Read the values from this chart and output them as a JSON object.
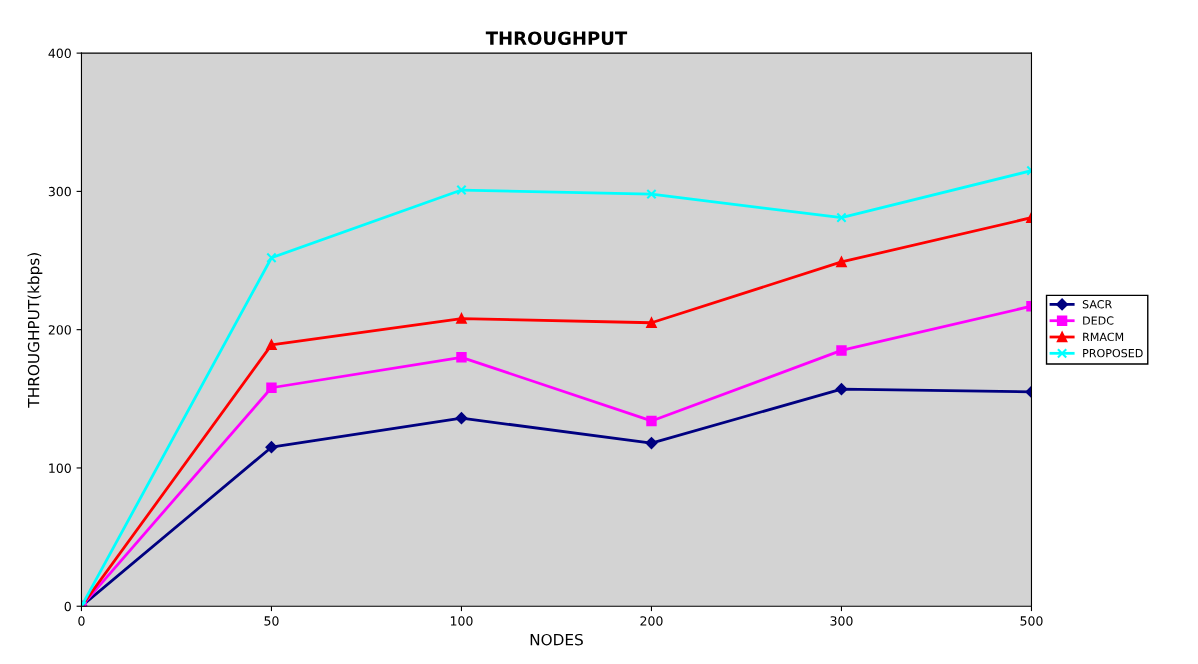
{
  "chart_data": {
    "type": "line",
    "title": "THROUGHPUT",
    "xlabel": "NODES",
    "ylabel": "THROUGHPUT(kbps)",
    "categories": [
      "0",
      "50",
      "100",
      "200",
      "300",
      "500"
    ],
    "ylim": [
      0,
      400
    ],
    "yticks": [
      0,
      100,
      200,
      300,
      400
    ],
    "grid": false,
    "legend": "right",
    "series": [
      {
        "name": "SACR",
        "color": "#000080",
        "marker": "diamond",
        "values": [
          0,
          115,
          136,
          118,
          157,
          155
        ]
      },
      {
        "name": "DEDC",
        "color": "#ff00ff",
        "marker": "square",
        "values": [
          0,
          158,
          180,
          134,
          185,
          217
        ]
      },
      {
        "name": "RMACM",
        "color": "#ff0000",
        "marker": "triangle",
        "values": [
          0,
          189,
          208,
          205,
          249,
          281
        ]
      },
      {
        "name": "PROPOSED",
        "color": "#00ffff",
        "marker": "cross",
        "values": [
          0,
          252,
          301,
          298,
          281,
          315
        ]
      }
    ]
  }
}
